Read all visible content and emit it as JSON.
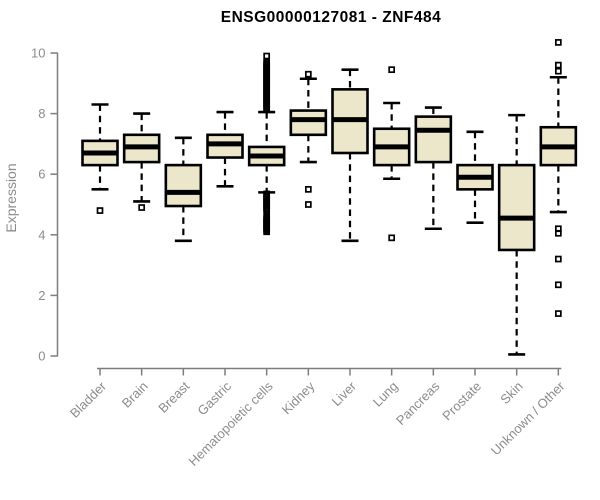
{
  "chart_data": {
    "type": "boxplot",
    "title": "ENSG00000127081 - ZNF484",
    "ylabel": "Expression",
    "xlabel": "",
    "ylim": [
      0,
      10.5
    ],
    "yticks": [
      0,
      2,
      4,
      6,
      8,
      10
    ],
    "grid": "off",
    "legend": "none",
    "colors": {
      "box_fill": "#ECE7CA",
      "box_stroke": "#000000",
      "median": "#000000",
      "whisker": "#000000",
      "outlier": "#000000",
      "axis_line": "#7d7d7d",
      "axis_text": "#8c8c8c",
      "title_text": "#000000",
      "background": "#ffffff"
    },
    "categories": [
      "Bladder",
      "Brain",
      "Breast",
      "Gastric",
      "Hematopoietic cells",
      "Kidney",
      "Liver",
      "Lung",
      "Pancreas",
      "Prostate",
      "Skin",
      "Unknown / Other"
    ],
    "series": [
      {
        "label": "Bladder",
        "low": 5.5,
        "q1": 6.3,
        "median": 6.7,
        "q3": 7.1,
        "high": 8.3,
        "outliers": [
          4.8
        ]
      },
      {
        "label": "Brain",
        "low": 5.1,
        "q1": 6.4,
        "median": 6.9,
        "q3": 7.3,
        "high": 8.0,
        "outliers": [
          4.9
        ]
      },
      {
        "label": "Breast",
        "low": 3.8,
        "q1": 4.95,
        "median": 5.4,
        "q3": 6.3,
        "high": 7.2,
        "outliers": []
      },
      {
        "label": "Gastric",
        "low": 5.6,
        "q1": 6.55,
        "median": 7.0,
        "q3": 7.3,
        "high": 8.05,
        "outliers": []
      },
      {
        "label": "Hematopoietic cells",
        "low": 5.4,
        "q1": 6.3,
        "median": 6.6,
        "q3": 6.9,
        "high": 8.05,
        "outliers": [
          9.9,
          9.7,
          9.65,
          9.6,
          9.55,
          9.5,
          9.45,
          9.4,
          9.35,
          9.3,
          9.25,
          9.2,
          9.15,
          9.1,
          9.05,
          9.0,
          8.95,
          8.9,
          8.85,
          8.8,
          8.75,
          8.7,
          8.65,
          8.6,
          8.55,
          8.5,
          8.45,
          8.4,
          8.35,
          8.3,
          8.25,
          8.2,
          8.15,
          5.35,
          5.3,
          5.25,
          5.2,
          5.15,
          5.1,
          5.05,
          5.0,
          4.95,
          4.9,
          4.85,
          4.8,
          4.6,
          4.55,
          4.5,
          4.45,
          4.4,
          4.35,
          4.3,
          4.25,
          4.2,
          4.15,
          4.1
        ]
      },
      {
        "label": "Kidney",
        "low": 6.4,
        "q1": 7.3,
        "median": 7.8,
        "q3": 8.1,
        "high": 9.15,
        "outliers": [
          9.3,
          5.5,
          5.0
        ]
      },
      {
        "label": "Liver",
        "low": 3.8,
        "q1": 6.7,
        "median": 7.8,
        "q3": 8.8,
        "high": 9.45,
        "outliers": []
      },
      {
        "label": "Lung",
        "low": 5.85,
        "q1": 6.3,
        "median": 6.9,
        "q3": 7.5,
        "high": 8.35,
        "outliers": [
          9.45,
          3.9
        ]
      },
      {
        "label": "Pancreas",
        "low": 4.2,
        "q1": 6.4,
        "median": 7.45,
        "q3": 7.9,
        "high": 8.2,
        "outliers": []
      },
      {
        "label": "Prostate",
        "low": 4.4,
        "q1": 5.5,
        "median": 5.9,
        "q3": 6.3,
        "high": 7.4,
        "outliers": []
      },
      {
        "label": "Skin",
        "low": 0.05,
        "q1": 3.5,
        "median": 4.55,
        "q3": 6.3,
        "high": 7.95,
        "outliers": []
      },
      {
        "label": "Unknown / Other",
        "low": 4.75,
        "q1": 6.3,
        "median": 6.9,
        "q3": 7.55,
        "high": 9.2,
        "outliers": [
          10.35,
          9.6,
          9.4,
          4.2,
          4.05,
          3.2,
          2.35,
          1.4
        ]
      }
    ]
  }
}
